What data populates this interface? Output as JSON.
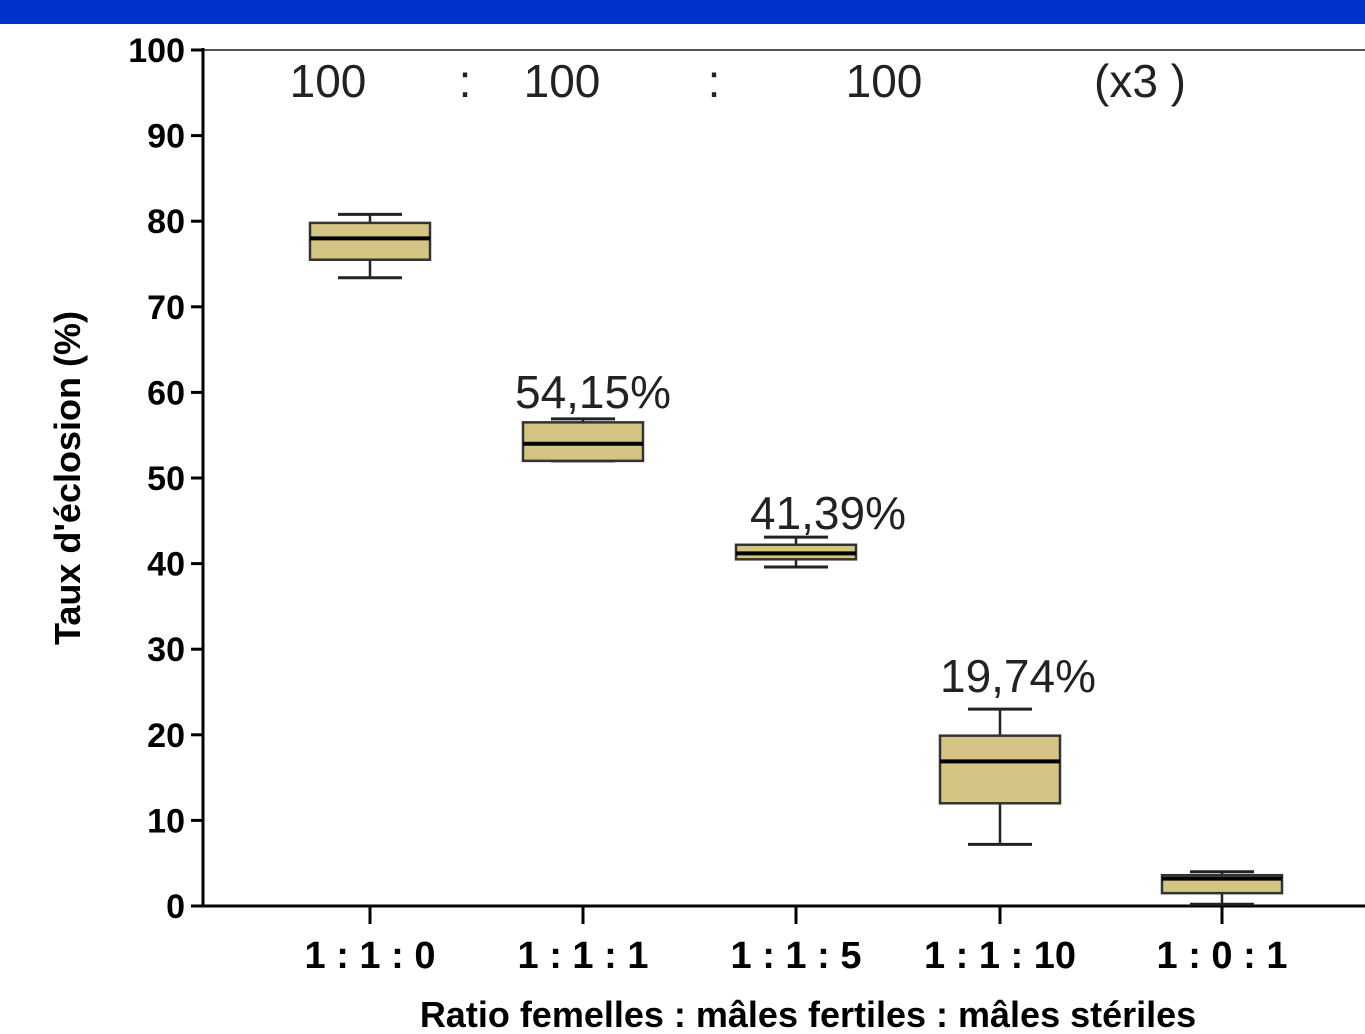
{
  "chart_data": {
    "type": "boxplot",
    "ylabel": "Taux d'éclosion (%)",
    "xlabel": "Ratio femelles : mâles fertiles : mâles stériles",
    "ylim": [
      0,
      100
    ],
    "yticks": [
      0,
      10,
      20,
      30,
      40,
      50,
      60,
      70,
      80,
      90,
      100
    ],
    "categories": [
      "1 : 1 : 0",
      "1 : 1 : 1",
      "1 : 1 : 5",
      "1 : 1 : 10",
      "1 : 0 : 1"
    ],
    "boxes": [
      {
        "category": "1 : 1 : 0",
        "min": 73.4,
        "q1": 75.5,
        "median": 78.0,
        "q3": 79.8,
        "max": 80.8
      },
      {
        "category": "1 : 1 : 1",
        "min": 52.0,
        "q1": 52.0,
        "median": 54.0,
        "q3": 56.5,
        "max": 56.9
      },
      {
        "category": "1 : 1 : 5",
        "min": 39.6,
        "q1": 40.5,
        "median": 41.2,
        "q3": 42.2,
        "max": 43.1
      },
      {
        "category": "1 : 1 : 10",
        "min": 7.2,
        "q1": 12.0,
        "median": 16.9,
        "q3": 19.9,
        "max": 23.0
      },
      {
        "category": "1 : 0 : 1",
        "min": 0.2,
        "q1": 1.5,
        "median": 3.2,
        "q3": 3.6,
        "max": 4.0
      }
    ],
    "box_color": "#d4c585",
    "grid": false,
    "header_annotation": [
      "100",
      ":",
      "100",
      ":",
      "100",
      "(x3 )"
    ],
    "value_annotations": [
      {
        "category": "1 : 1 : 1",
        "text": "54,15%"
      },
      {
        "category": "1 : 1 : 5",
        "text": "41,39%"
      },
      {
        "category": "1 : 1 : 10",
        "text": "19,74%"
      }
    ]
  },
  "colors": {
    "banner": "#0033cc",
    "box_fill": "#d4c585"
  }
}
